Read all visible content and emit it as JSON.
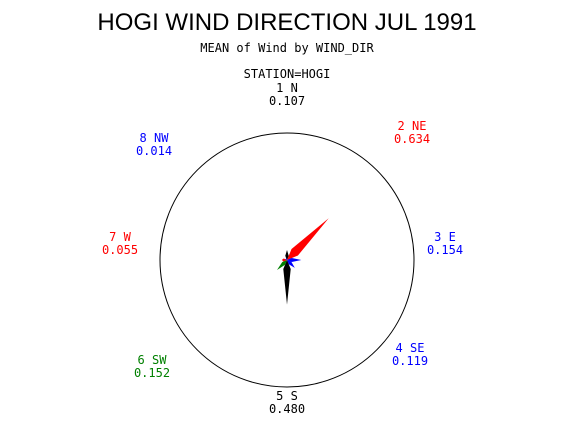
{
  "chart_data": {
    "type": "star",
    "title": "HOGI WIND DIRECTION JUL 1991",
    "subtitle": "MEAN of Wind by WIND_DIR",
    "station": "STATION=HOGI",
    "categories": [
      "1 N",
      "2 NE",
      "3 E",
      "4 SE",
      "5 S",
      "6 SW",
      "7 W",
      "8 NW"
    ],
    "values": [
      0.107,
      0.634,
      0.154,
      0.119,
      0.48,
      0.152,
      0.055,
      0.014
    ],
    "value_labels": [
      "0.107",
      "0.634",
      "0.154",
      "0.119",
      "0.480",
      "0.152",
      "0.055",
      "0.014"
    ],
    "colors": [
      "#000000",
      "#ff0000",
      "#0000ff",
      "#0000ff",
      "#000000",
      "#008000",
      "#ff0000",
      "#0000ff"
    ]
  }
}
